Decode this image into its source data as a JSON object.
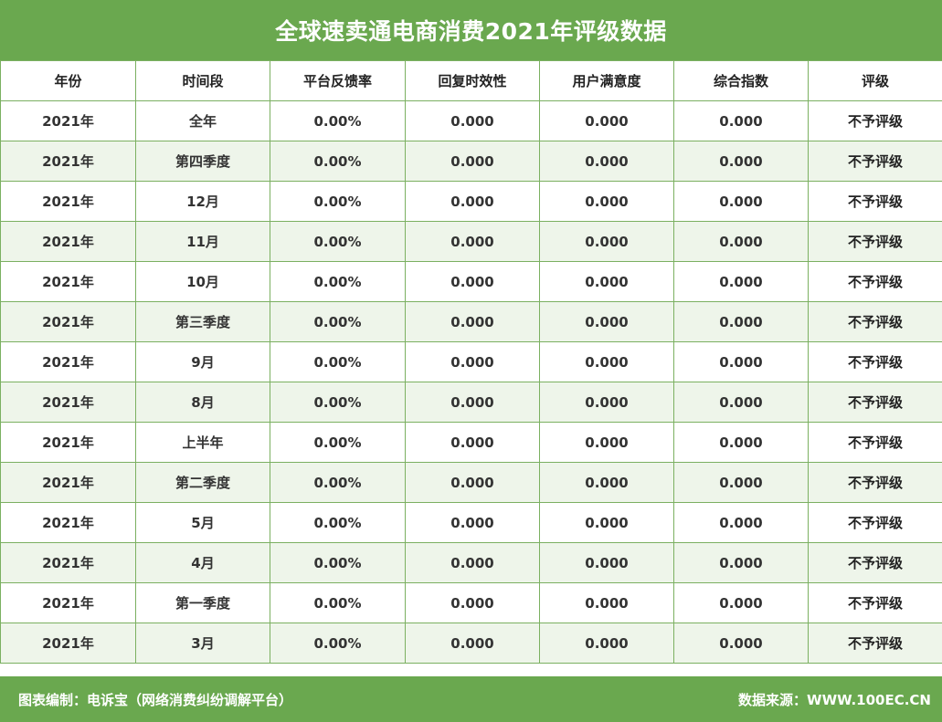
{
  "title": "全球速卖通电商消费2021年评级数据",
  "table": {
    "headers": [
      "年份",
      "时间段",
      "平台反馈率",
      "回复时效性",
      "用户满意度",
      "综合指数",
      "评级"
    ],
    "rows": [
      [
        "2021年",
        "全年",
        "0.00%",
        "0.000",
        "0.000",
        "0.000",
        "不予评级"
      ],
      [
        "2021年",
        "第四季度",
        "0.00%",
        "0.000",
        "0.000",
        "0.000",
        "不予评级"
      ],
      [
        "2021年",
        "12月",
        "0.00%",
        "0.000",
        "0.000",
        "0.000",
        "不予评级"
      ],
      [
        "2021年",
        "11月",
        "0.00%",
        "0.000",
        "0.000",
        "0.000",
        "不予评级"
      ],
      [
        "2021年",
        "10月",
        "0.00%",
        "0.000",
        "0.000",
        "0.000",
        "不予评级"
      ],
      [
        "2021年",
        "第三季度",
        "0.00%",
        "0.000",
        "0.000",
        "0.000",
        "不予评级"
      ],
      [
        "2021年",
        "9月",
        "0.00%",
        "0.000",
        "0.000",
        "0.000",
        "不予评级"
      ],
      [
        "2021年",
        "8月",
        "0.00%",
        "0.000",
        "0.000",
        "0.000",
        "不予评级"
      ],
      [
        "2021年",
        "上半年",
        "0.00%",
        "0.000",
        "0.000",
        "0.000",
        "不予评级"
      ],
      [
        "2021年",
        "第二季度",
        "0.00%",
        "0.000",
        "0.000",
        "0.000",
        "不予评级"
      ],
      [
        "2021年",
        "5月",
        "0.00%",
        "0.000",
        "0.000",
        "0.000",
        "不予评级"
      ],
      [
        "2021年",
        "4月",
        "0.00%",
        "0.000",
        "0.000",
        "0.000",
        "不予评级"
      ],
      [
        "2021年",
        "第一季度",
        "0.00%",
        "0.000",
        "0.000",
        "0.000",
        "不予评级"
      ],
      [
        "2021年",
        "3月",
        "0.00%",
        "0.000",
        "0.000",
        "0.000",
        "不予评级"
      ]
    ]
  },
  "footer": {
    "left": "图表编制：电诉宝（网络消费纠纷调解平台）",
    "right": "数据来源：WWW.100EC.CN"
  },
  "colors": {
    "brand_green": "#6aa84f",
    "row_alt": "#eef5ea",
    "border": "#7bb061"
  }
}
